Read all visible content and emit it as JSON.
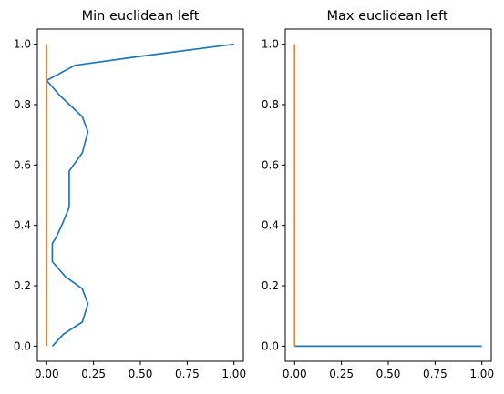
{
  "chart_data": [
    {
      "type": "line",
      "title": "Min euclidean left",
      "xlabel": "",
      "ylabel": "",
      "xlim": [
        -0.05,
        1.05
      ],
      "ylim": [
        -0.05,
        1.05
      ],
      "xticks": [
        0.0,
        0.25,
        0.5,
        0.75,
        1.0
      ],
      "xtick_labels": [
        "0.00",
        "0.25",
        "0.50",
        "0.75",
        "1.00"
      ],
      "yticks": [
        0.0,
        0.2,
        0.4,
        0.6,
        0.8,
        1.0
      ],
      "ytick_labels": [
        "0.0",
        "0.2",
        "0.4",
        "0.6",
        "0.8",
        "1.0"
      ],
      "grid": false,
      "series": [
        {
          "color": "#1f77b4",
          "x": [
            0.03,
            0.09,
            0.19,
            0.22,
            0.19,
            0.1,
            0.03,
            0.03,
            0.05,
            0.08,
            0.12,
            0.12,
            0.19,
            0.22,
            0.19,
            0.07,
            0.0,
            0.15,
            0.5,
            1.0
          ],
          "y": [
            0.0,
            0.04,
            0.08,
            0.14,
            0.19,
            0.23,
            0.28,
            0.34,
            0.36,
            0.4,
            0.46,
            0.58,
            0.64,
            0.71,
            0.76,
            0.83,
            0.88,
            0.93,
            0.96,
            1.0
          ]
        },
        {
          "color": "#ff7f0e",
          "x": [
            0.0,
            0.0
          ],
          "y": [
            0.0,
            1.0
          ]
        }
      ]
    },
    {
      "type": "line",
      "title": "Max euclidean left",
      "xlabel": "",
      "ylabel": "",
      "xlim": [
        -0.05,
        1.05
      ],
      "ylim": [
        -0.05,
        1.05
      ],
      "xticks": [
        0.0,
        0.25,
        0.5,
        0.75,
        1.0
      ],
      "xtick_labels": [
        "0.00",
        "0.25",
        "0.50",
        "0.75",
        "1.00"
      ],
      "yticks": [
        0.0,
        0.2,
        0.4,
        0.6,
        0.8,
        1.0
      ],
      "ytick_labels": [
        "0.0",
        "0.2",
        "0.4",
        "0.6",
        "0.8",
        "1.0"
      ],
      "grid": false,
      "series": [
        {
          "color": "#1f77b4",
          "x": [
            0.0,
            1.0
          ],
          "y": [
            0.0,
            0.0
          ]
        },
        {
          "color": "#ff7f0e",
          "x": [
            0.0,
            0.0
          ],
          "y": [
            0.0,
            1.0
          ]
        }
      ]
    }
  ]
}
